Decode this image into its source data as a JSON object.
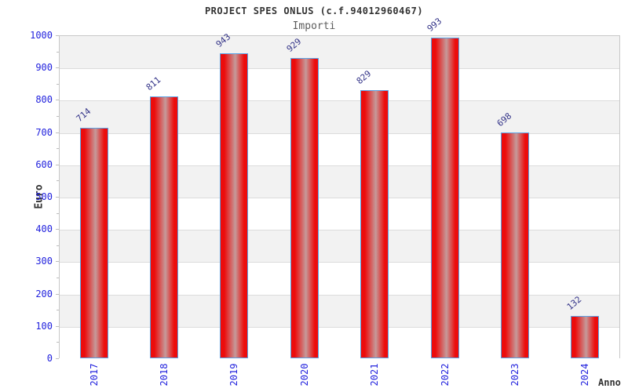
{
  "chart_data": {
    "type": "bar",
    "title": "PROJECT SPES ONLUS (c.f.94012960467)",
    "subtitle": "Importi",
    "xlabel": "Anno",
    "ylabel": "Euro",
    "categories": [
      "2017",
      "2018",
      "2019",
      "2020",
      "2021",
      "2022",
      "2023",
      "2024"
    ],
    "values": [
      714,
      811,
      943,
      929,
      829,
      993,
      698,
      132
    ],
    "ylim": [
      0,
      1000
    ],
    "ytick_step": 100,
    "grid": true,
    "legend_position": "none",
    "colors": {
      "bar_red": "#ec0c0c",
      "bar_center_light": "#c59a9a",
      "bar_border": "#5aa1e4",
      "tick_label_blue": "#2222dd",
      "value_label_navy": "#333388",
      "band_gray": "#f2f2f2",
      "band_white": "#ffffff",
      "gridline": "#dcdcdc",
      "plot_border": "#c8c8c8",
      "title_color": "#333333",
      "subtitle_color": "#5c5c5c",
      "axis_title_color": "#333333"
    }
  }
}
